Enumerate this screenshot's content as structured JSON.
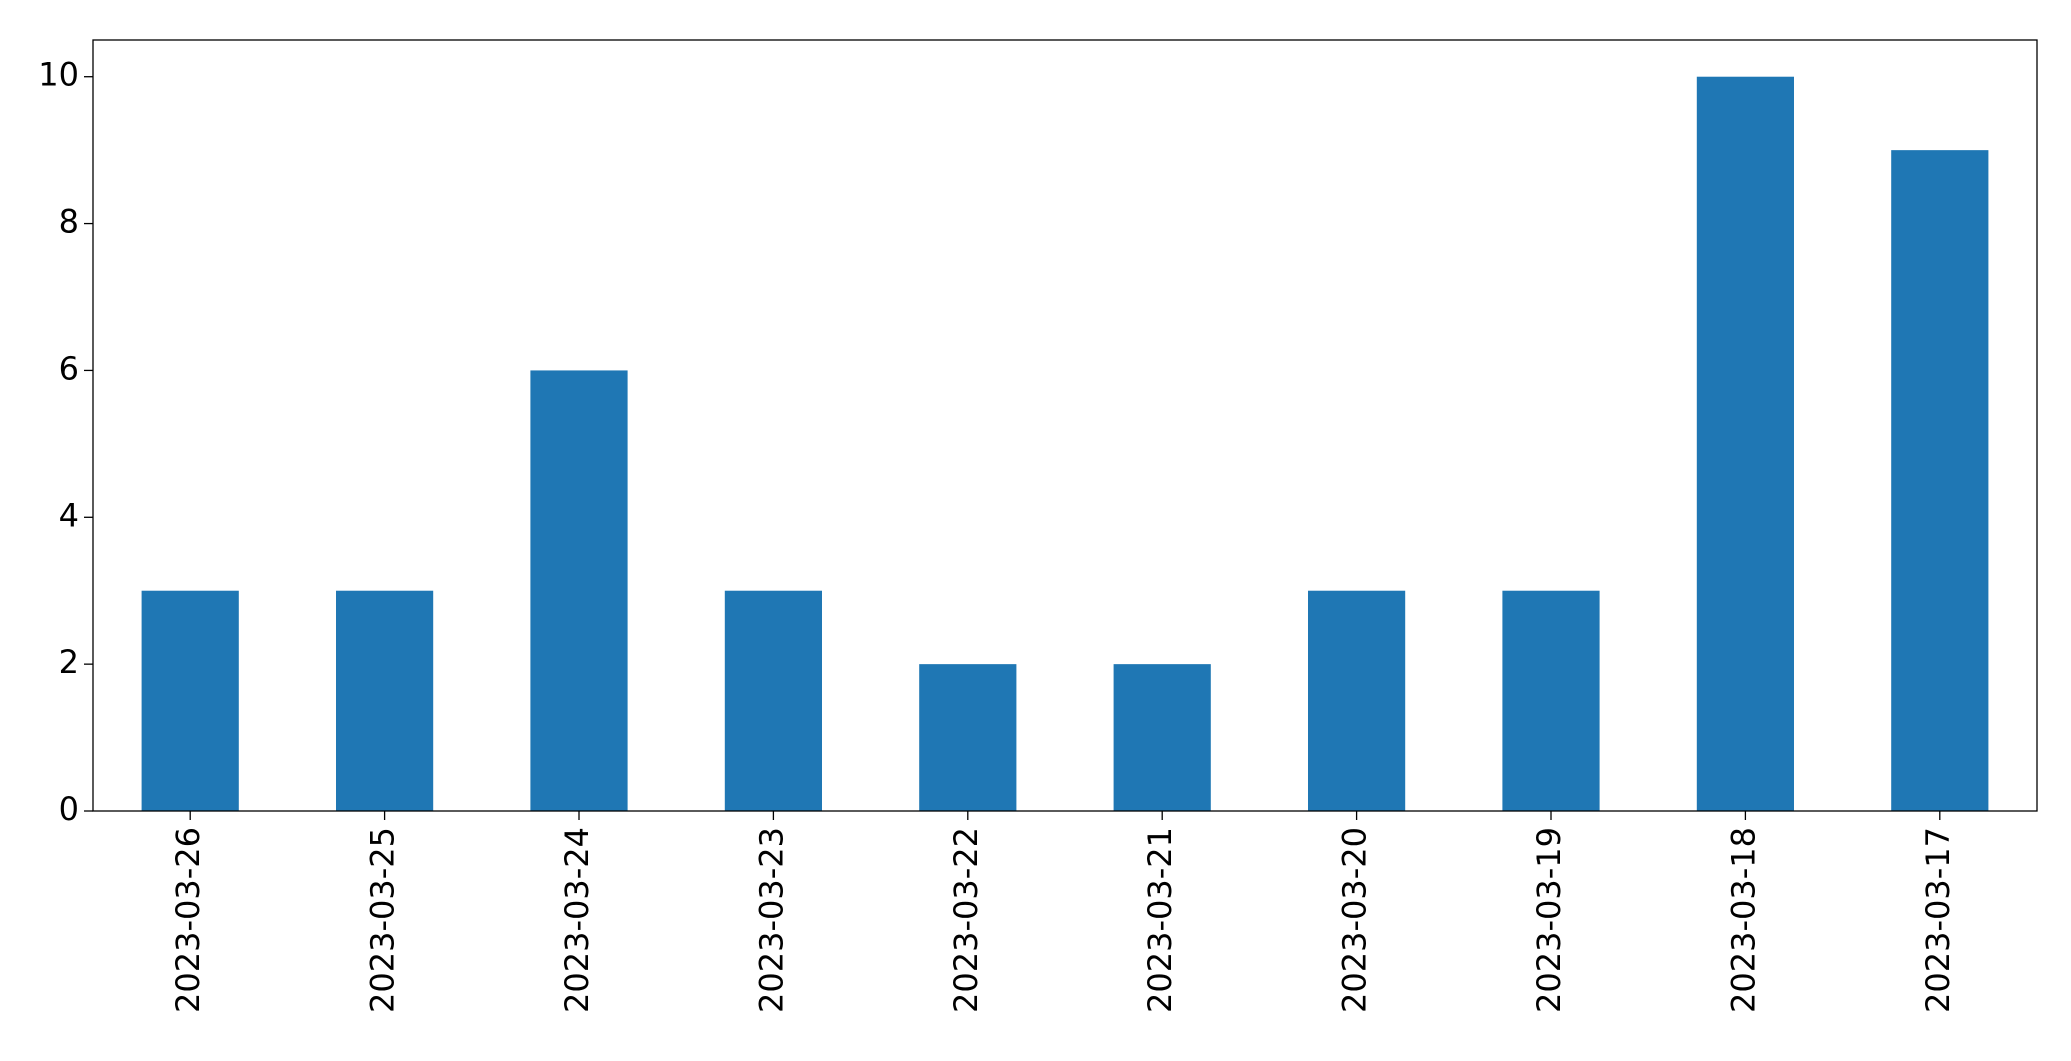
{
  "chart_data": {
    "type": "bar",
    "categories": [
      "2023-03-26",
      "2023-03-25",
      "2023-03-24",
      "2023-03-23",
      "2023-03-22",
      "2023-03-21",
      "2023-03-20",
      "2023-03-19",
      "2023-03-18",
      "2023-03-17"
    ],
    "values": [
      3,
      3,
      6,
      3,
      2,
      2,
      3,
      3,
      10,
      9
    ],
    "color": "#1f77b4",
    "ylim": [
      0,
      10.5
    ],
    "yticks": [
      0,
      2,
      4,
      6,
      8,
      10
    ],
    "grid": false
  }
}
